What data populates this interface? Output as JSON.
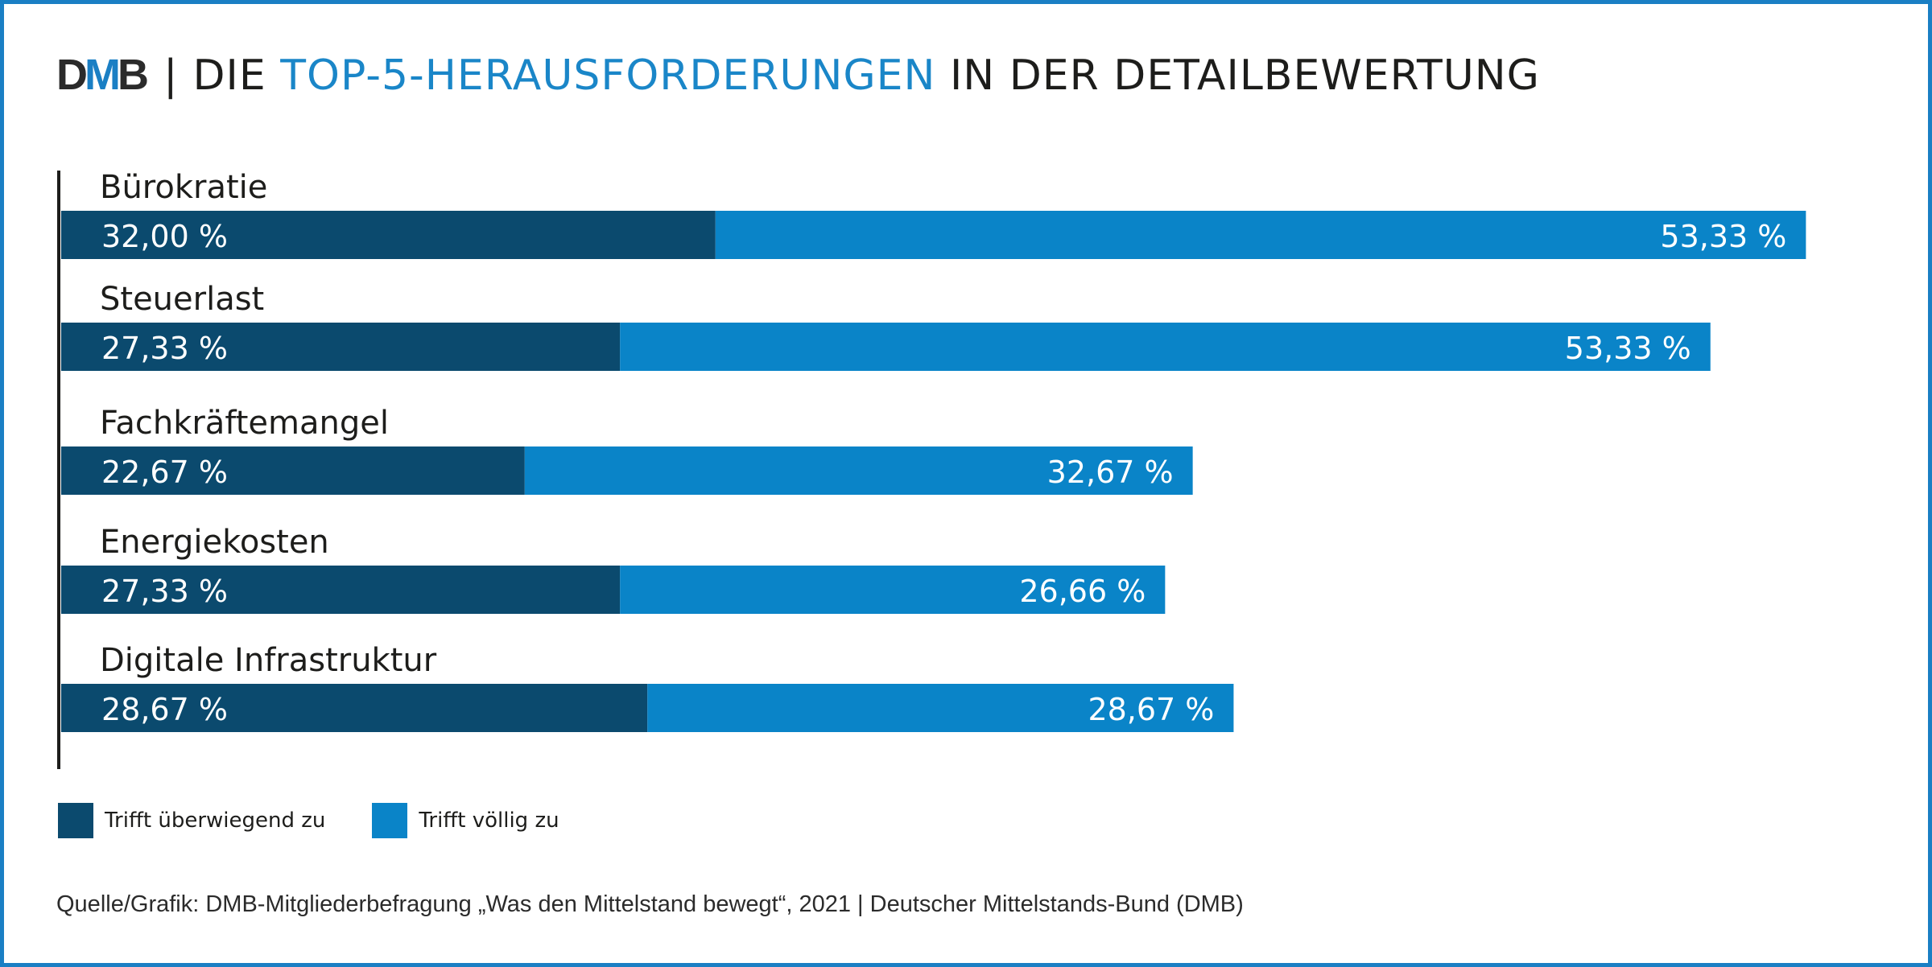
{
  "header": {
    "logo_d": "D",
    "logo_m": "M",
    "logo_b": "B",
    "separator": "|",
    "title_prefix": "DIE",
    "title_highlight": "TOP-5-HERAUSFORDERUNGEN",
    "title_suffix": "IN DER DETAILBEWERTUNG"
  },
  "colors": {
    "dark": "#0b4a6e",
    "light": "#0a84c8",
    "frame": "#1a7fc4",
    "title_accent": "#1a86c8"
  },
  "chart_data": {
    "type": "bar",
    "orientation": "horizontal",
    "stacked": true,
    "title": "DIE TOP-5-HERAUSFORDERUNGEN IN DER DETAILBEWERTUNG",
    "categories": [
      "Bürokratie",
      "Steuerlast",
      "Fachkräftemangel",
      "Energiekosten",
      "Digitale Infrastruktur"
    ],
    "series": [
      {
        "name": "Trifft überwiegend zu",
        "color": "#0b4a6e",
        "values": [
          32.0,
          27.33,
          22.67,
          27.33,
          28.67
        ],
        "labels": [
          "32,00 %",
          "27,33 %",
          "22,67 %",
          "27,33 %",
          "28,67 %"
        ]
      },
      {
        "name": "Trifft völlig zu",
        "color": "#0a84c8",
        "values": [
          53.33,
          53.33,
          32.67,
          26.66,
          28.67
        ],
        "labels": [
          "53,33 %",
          "53,33 %",
          "32,67 %",
          "26,66 %",
          "28,67 %"
        ]
      }
    ],
    "xlabel": "",
    "ylabel": "",
    "grid": false,
    "legend_position": "bottom-left",
    "unit": "%"
  },
  "legend": [
    {
      "label": "Trifft überwiegend zu"
    },
    {
      "label": "Trifft völlig zu"
    }
  ],
  "source": "Quelle/Grafik: DMB-Mitgliederbefragung „Was den Mittelstand bewegt“, 2021 | Deutscher Mittelstands-Bund (DMB)"
}
